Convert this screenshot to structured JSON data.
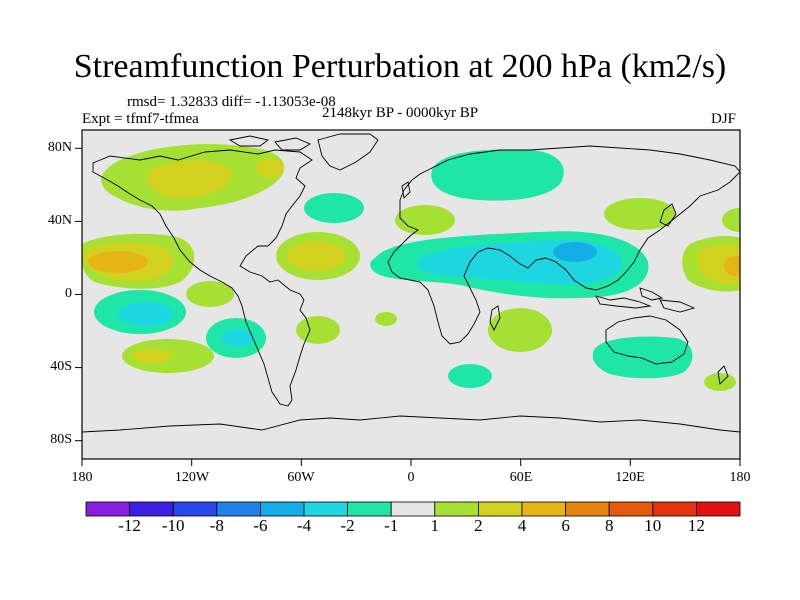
{
  "title": "Streamfunction Perturbation at 200 hPa (km2/s)",
  "stats": "rmsd= 1.32833 diff= -1.13053e-08",
  "experiment": "Expt = tfmf7-tfmea",
  "period": "2148kyr BP - 0000kyr BP",
  "season": "DJF",
  "axes": {
    "x_ticks": [
      "180",
      "120W",
      "60W",
      "0",
      "60E",
      "120E",
      "180"
    ],
    "y_ticks": [
      "80N",
      "40N",
      "0",
      "40S",
      "80S"
    ]
  },
  "colorbar": {
    "labels": [
      "-12",
      "-10",
      "-8",
      "-6",
      "-4",
      "-2",
      "-1",
      "1",
      "2",
      "4",
      "6",
      "8",
      "10",
      "12"
    ],
    "colors": [
      "#8a1ee0",
      "#3c1ee6",
      "#2a46ea",
      "#1e82ea",
      "#14aee6",
      "#1ed6e0",
      "#1ee6a6",
      "#e6e6e6",
      "#a6e032",
      "#d2d21e",
      "#e6b414",
      "#e6820e",
      "#e65a0e",
      "#e6320e",
      "#e60e0e"
    ]
  }
}
